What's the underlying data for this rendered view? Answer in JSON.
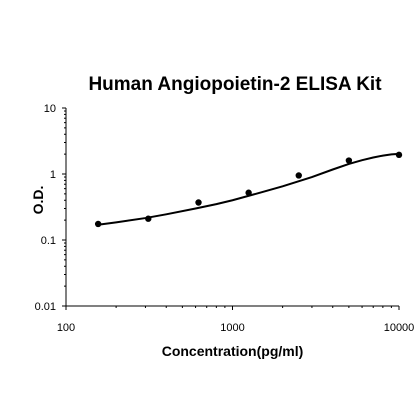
{
  "chart_data": {
    "type": "scatter",
    "title": "Human Angiopoietin-2 ELISA Kit",
    "xlabel": "Concentration(pg/ml)",
    "ylabel": "O.D.",
    "x_scale": "log",
    "y_scale": "log",
    "xlim": [
      100,
      10000
    ],
    "ylim": [
      0.01,
      10
    ],
    "x_ticks": [
      "100",
      "1000",
      "10000"
    ],
    "y_ticks": [
      "0.01",
      "0.1",
      "1",
      "10"
    ],
    "grid": false,
    "series": [
      {
        "x": [
          156,
          312,
          625,
          1250,
          2500,
          5000,
          10000
        ],
        "y": [
          0.175,
          0.21,
          0.37,
          0.52,
          0.95,
          1.6,
          1.95
        ]
      }
    ],
    "fit_curve": {
      "x": [
        156,
        200,
        300,
        400,
        600,
        800,
        1000,
        1500,
        2000,
        3000,
        4000,
        5000,
        6000,
        7000,
        8000,
        9000,
        10000
      ],
      "y": [
        0.17,
        0.185,
        0.215,
        0.245,
        0.3,
        0.35,
        0.4,
        0.53,
        0.65,
        0.9,
        1.17,
        1.42,
        1.62,
        1.78,
        1.9,
        1.98,
        2.02
      ]
    }
  }
}
